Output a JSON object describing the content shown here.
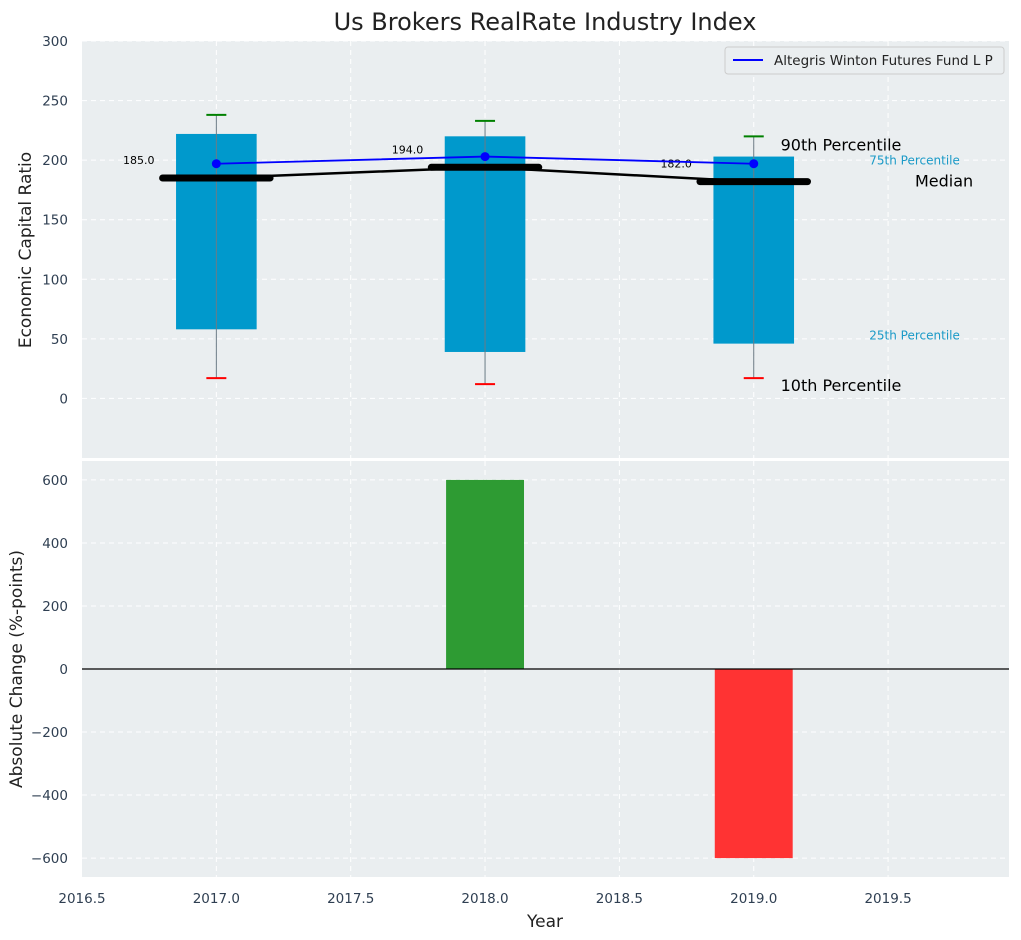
{
  "title": "Us Brokers RealRate Industry Index",
  "legend": {
    "series_name": "Altegris Winton Futures Fund L P",
    "placement": "top-right"
  },
  "colors": {
    "plot_bg": "#eaeef0",
    "box": "#0099cc",
    "series": "#0000ff",
    "median": "#000000",
    "p90_cap": "#008000",
    "p10_cap": "#ff0000",
    "positive": "#2e9b33",
    "negative": "#ff3333",
    "pct_small": "#1b9ac7"
  },
  "chart_data": [
    {
      "type": "bar",
      "subtype": "percentile-box-with-line",
      "ylabel": "Economic Capital Ratio",
      "ylim": [
        -50,
        300
      ],
      "yticks": [
        0,
        50,
        100,
        150,
        200,
        250,
        300
      ],
      "x": [
        2017.0,
        2018.0,
        2019.0
      ],
      "p10": [
        17,
        12,
        17
      ],
      "p25": [
        58,
        39,
        46
      ],
      "median": [
        185,
        194,
        182
      ],
      "p75": [
        222,
        220,
        203
      ],
      "p90": [
        238,
        233,
        220
      ],
      "series": [
        {
          "name": "Altegris Winton Futures Fund L P",
          "values": [
            197,
            203,
            197
          ]
        }
      ],
      "median_labels": [
        "185.0",
        "194.0",
        "182.0"
      ],
      "annotations": {
        "p90": "90th Percentile",
        "p75": "75th Percentile",
        "median": "Median",
        "p25": "25th Percentile",
        "p10": "10th Percentile"
      },
      "grid": true
    },
    {
      "type": "bar",
      "subtype": "change",
      "xlabel": "Year",
      "ylabel": "Absolute Change (%-points)",
      "ylim": [
        -660,
        660
      ],
      "yticks": [
        -600,
        -400,
        -200,
        0,
        200,
        400,
        600
      ],
      "ytick_labels": [
        "−600",
        "−400",
        "−200",
        "0",
        "200",
        "400",
        "600"
      ],
      "x": [
        2017.0,
        2018.0,
        2019.0
      ],
      "values": [
        0,
        600,
        -600
      ],
      "xlim": [
        2016.5,
        2019.95
      ],
      "xticks": [
        2016.5,
        2017.0,
        2017.5,
        2018.0,
        2018.5,
        2019.0,
        2019.5
      ],
      "xtick_labels": [
        "2016.5",
        "2017.0",
        "2017.5",
        "2018.0",
        "2018.5",
        "2019.0",
        "2019.5"
      ],
      "grid": true
    }
  ]
}
